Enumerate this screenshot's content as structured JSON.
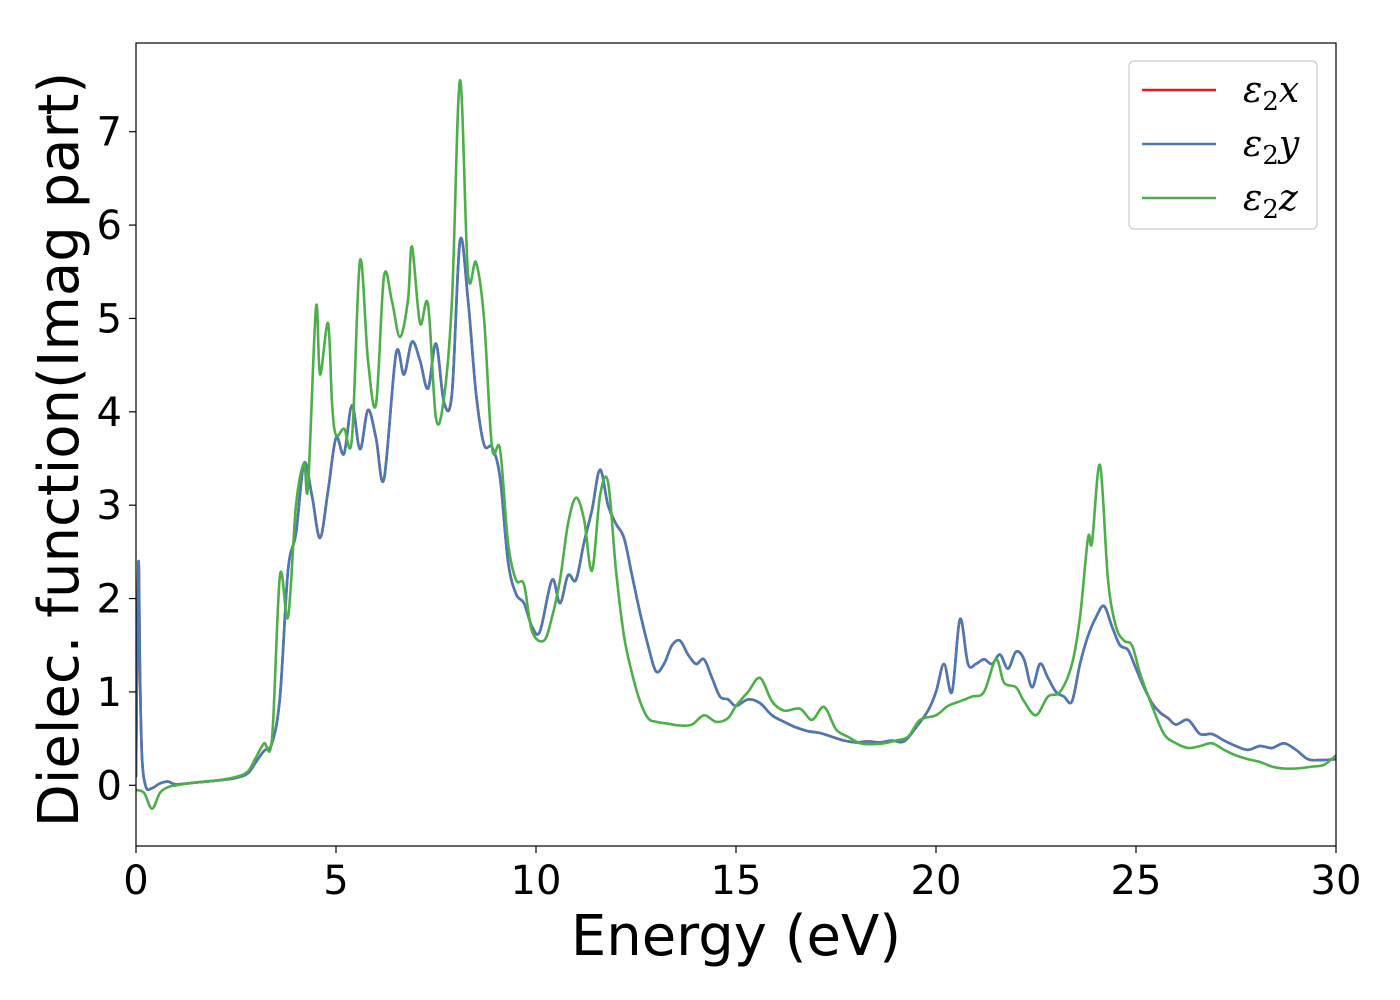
{
  "chart_data": {
    "type": "line",
    "title": "",
    "xlabel": "Energy (eV)",
    "ylabel": "Dielec. function(Imag part)",
    "xlim": [
      0,
      30
    ],
    "ylim": [
      -0.65,
      7.95
    ],
    "xticks": [
      0,
      5,
      10,
      15,
      20,
      25,
      30
    ],
    "yticks": [
      0,
      1,
      2,
      3,
      4,
      5,
      6,
      7
    ],
    "grid": false,
    "legend_position": "top-right",
    "series": [
      {
        "name": "ε2x",
        "legend": {
          "base": "ε",
          "sub": "2",
          "axis": "x"
        },
        "color": "#e41a1c",
        "x": [
          0.0,
          0.06,
          0.1,
          0.15,
          0.25,
          0.4,
          0.6,
          0.8,
          1.0,
          1.5,
          2.0,
          2.5,
          2.8,
          3.0,
          3.2,
          3.4,
          3.6,
          3.8,
          4.0,
          4.2,
          4.4,
          4.6,
          4.8,
          5.0,
          5.2,
          5.4,
          5.6,
          5.8,
          6.0,
          6.2,
          6.5,
          6.7,
          6.9,
          7.1,
          7.3,
          7.5,
          7.7,
          7.9,
          8.1,
          8.3,
          8.5,
          8.7,
          8.9,
          9.1,
          9.3,
          9.5,
          9.7,
          9.9,
          10.1,
          10.4,
          10.6,
          10.8,
          11.0,
          11.2,
          11.4,
          11.6,
          11.8,
          12.0,
          12.2,
          12.4,
          12.6,
          12.8,
          13.0,
          13.2,
          13.4,
          13.6,
          13.8,
          14.0,
          14.2,
          14.4,
          14.6,
          14.8,
          15.0,
          15.3,
          15.6,
          15.9,
          16.2,
          16.5,
          16.8,
          17.1,
          17.4,
          17.7,
          18.0,
          18.3,
          18.6,
          18.9,
          19.2,
          19.5,
          19.8,
          20.0,
          20.2,
          20.4,
          20.6,
          20.8,
          21.0,
          21.2,
          21.4,
          21.6,
          21.8,
          22.0,
          22.2,
          22.4,
          22.6,
          22.8,
          23.0,
          23.2,
          23.4,
          23.6,
          23.8,
          24.0,
          24.2,
          24.4,
          24.6,
          24.8,
          25.0,
          25.2,
          25.4,
          25.6,
          25.8,
          26.0,
          26.3,
          26.6,
          26.9,
          27.2,
          27.5,
          27.8,
          28.1,
          28.4,
          28.7,
          29.0,
          29.3,
          29.6,
          30.0
        ],
        "y": [
          0.1,
          2.38,
          1.2,
          0.3,
          -0.02,
          -0.03,
          0.02,
          0.04,
          0.01,
          0.03,
          0.05,
          0.08,
          0.13,
          0.25,
          0.37,
          0.45,
          0.95,
          2.3,
          2.7,
          3.45,
          3.1,
          2.65,
          3.15,
          3.72,
          3.55,
          4.07,
          3.6,
          4.02,
          3.72,
          3.28,
          4.62,
          4.4,
          4.75,
          4.55,
          4.25,
          4.73,
          4.1,
          4.2,
          5.83,
          5.2,
          4.2,
          3.65,
          3.62,
          3.3,
          2.4,
          2.05,
          1.95,
          1.7,
          1.65,
          2.2,
          1.95,
          2.25,
          2.2,
          2.6,
          2.95,
          3.38,
          3.0,
          2.8,
          2.65,
          2.25,
          1.85,
          1.5,
          1.22,
          1.3,
          1.5,
          1.55,
          1.4,
          1.3,
          1.35,
          1.15,
          0.95,
          0.92,
          0.85,
          0.92,
          0.88,
          0.75,
          0.68,
          0.62,
          0.58,
          0.56,
          0.52,
          0.48,
          0.46,
          0.47,
          0.46,
          0.48,
          0.47,
          0.62,
          0.8,
          1.0,
          1.3,
          1.0,
          1.78,
          1.3,
          1.3,
          1.35,
          1.3,
          1.4,
          1.25,
          1.43,
          1.35,
          1.05,
          1.3,
          1.15,
          1.0,
          0.95,
          0.9,
          1.3,
          1.6,
          1.8,
          1.92,
          1.7,
          1.5,
          1.45,
          1.25,
          1.05,
          0.88,
          0.78,
          0.72,
          0.65,
          0.7,
          0.55,
          0.55,
          0.48,
          0.42,
          0.38,
          0.42,
          0.4,
          0.45,
          0.38,
          0.28,
          0.27,
          0.28
        ]
      },
      {
        "name": "ε2y",
        "legend": {
          "base": "ε",
          "sub": "2",
          "axis": "y"
        },
        "color": "#4a7ab5",
        "x": [
          0.0,
          0.06,
          0.1,
          0.15,
          0.25,
          0.4,
          0.6,
          0.8,
          1.0,
          1.5,
          2.0,
          2.5,
          2.8,
          3.0,
          3.2,
          3.4,
          3.6,
          3.8,
          4.0,
          4.2,
          4.4,
          4.6,
          4.8,
          5.0,
          5.2,
          5.4,
          5.6,
          5.8,
          6.0,
          6.2,
          6.5,
          6.7,
          6.9,
          7.1,
          7.3,
          7.5,
          7.7,
          7.9,
          8.1,
          8.3,
          8.5,
          8.7,
          8.9,
          9.1,
          9.3,
          9.5,
          9.7,
          9.9,
          10.1,
          10.4,
          10.6,
          10.8,
          11.0,
          11.2,
          11.4,
          11.6,
          11.8,
          12.0,
          12.2,
          12.4,
          12.6,
          12.8,
          13.0,
          13.2,
          13.4,
          13.6,
          13.8,
          14.0,
          14.2,
          14.4,
          14.6,
          14.8,
          15.0,
          15.3,
          15.6,
          15.9,
          16.2,
          16.5,
          16.8,
          17.1,
          17.4,
          17.7,
          18.0,
          18.3,
          18.6,
          18.9,
          19.2,
          19.5,
          19.8,
          20.0,
          20.2,
          20.4,
          20.6,
          20.8,
          21.0,
          21.2,
          21.4,
          21.6,
          21.8,
          22.0,
          22.2,
          22.4,
          22.6,
          22.8,
          23.0,
          23.2,
          23.4,
          23.6,
          23.8,
          24.0,
          24.2,
          24.4,
          24.6,
          24.8,
          25.0,
          25.2,
          25.4,
          25.6,
          25.8,
          26.0,
          26.3,
          26.6,
          26.9,
          27.2,
          27.5,
          27.8,
          28.1,
          28.4,
          28.7,
          29.0,
          29.3,
          29.6,
          30.0
        ],
        "y": [
          0.1,
          2.38,
          1.2,
          0.3,
          -0.02,
          -0.03,
          0.02,
          0.04,
          0.01,
          0.03,
          0.05,
          0.08,
          0.13,
          0.25,
          0.37,
          0.45,
          0.95,
          2.3,
          2.7,
          3.45,
          3.1,
          2.65,
          3.15,
          3.72,
          3.55,
          4.07,
          3.6,
          4.02,
          3.72,
          3.28,
          4.62,
          4.4,
          4.75,
          4.55,
          4.25,
          4.73,
          4.1,
          4.2,
          5.83,
          5.2,
          4.2,
          3.65,
          3.62,
          3.3,
          2.4,
          2.05,
          1.95,
          1.7,
          1.65,
          2.2,
          1.95,
          2.25,
          2.2,
          2.6,
          2.95,
          3.38,
          3.0,
          2.8,
          2.65,
          2.25,
          1.85,
          1.5,
          1.22,
          1.3,
          1.5,
          1.55,
          1.4,
          1.3,
          1.35,
          1.15,
          0.95,
          0.92,
          0.85,
          0.92,
          0.88,
          0.75,
          0.68,
          0.62,
          0.58,
          0.56,
          0.52,
          0.48,
          0.46,
          0.47,
          0.46,
          0.48,
          0.47,
          0.62,
          0.8,
          1.0,
          1.3,
          1.0,
          1.78,
          1.3,
          1.3,
          1.35,
          1.3,
          1.4,
          1.25,
          1.43,
          1.35,
          1.05,
          1.3,
          1.15,
          1.0,
          0.95,
          0.9,
          1.3,
          1.6,
          1.8,
          1.92,
          1.7,
          1.5,
          1.45,
          1.25,
          1.05,
          0.88,
          0.78,
          0.72,
          0.65,
          0.7,
          0.55,
          0.55,
          0.48,
          0.42,
          0.38,
          0.42,
          0.4,
          0.45,
          0.38,
          0.28,
          0.27,
          0.28
        ]
      },
      {
        "name": "ε2z",
        "legend": {
          "base": "ε",
          "sub": "2",
          "axis": "z"
        },
        "color": "#4daf4a",
        "x": [
          0.0,
          0.2,
          0.4,
          0.6,
          0.8,
          1.0,
          1.5,
          2.0,
          2.5,
          2.8,
          3.0,
          3.2,
          3.4,
          3.6,
          3.8,
          4.0,
          4.2,
          4.3,
          4.5,
          4.6,
          4.8,
          4.9,
          5.0,
          5.2,
          5.4,
          5.6,
          5.8,
          6.0,
          6.2,
          6.4,
          6.6,
          6.8,
          6.9,
          7.1,
          7.3,
          7.5,
          7.7,
          7.9,
          8.1,
          8.3,
          8.5,
          8.7,
          8.9,
          9.1,
          9.3,
          9.5,
          9.7,
          9.9,
          10.2,
          10.4,
          10.6,
          10.8,
          11.0,
          11.2,
          11.4,
          11.6,
          11.8,
          12.0,
          12.2,
          12.4,
          12.6,
          12.8,
          13.0,
          13.3,
          13.6,
          13.9,
          14.2,
          14.5,
          14.8,
          15.0,
          15.3,
          15.6,
          15.9,
          16.2,
          16.6,
          16.9,
          17.2,
          17.5,
          17.8,
          18.1,
          18.4,
          18.7,
          19.0,
          19.3,
          19.6,
          20.0,
          20.3,
          20.6,
          20.9,
          21.2,
          21.5,
          21.7,
          22.0,
          22.2,
          22.5,
          22.8,
          23.1,
          23.4,
          23.6,
          23.8,
          23.9,
          24.1,
          24.3,
          24.5,
          24.7,
          24.9,
          25.1,
          25.4,
          25.7,
          26.0,
          26.3,
          26.6,
          26.9,
          27.2,
          27.5,
          27.8,
          28.1,
          28.4,
          28.7,
          29.0,
          29.4,
          29.7,
          30.0
        ],
        "y": [
          -0.05,
          -0.08,
          -0.25,
          -0.08,
          -0.02,
          0.0,
          0.03,
          0.05,
          0.09,
          0.15,
          0.3,
          0.45,
          0.5,
          2.25,
          1.8,
          3.0,
          3.45,
          3.2,
          5.12,
          4.4,
          4.95,
          4.1,
          3.75,
          3.82,
          3.72,
          5.62,
          4.55,
          4.08,
          5.45,
          5.18,
          4.8,
          5.2,
          5.77,
          4.95,
          5.15,
          3.93,
          4.15,
          5.2,
          7.55,
          5.48,
          5.6,
          5.0,
          3.62,
          3.6,
          2.6,
          2.2,
          2.15,
          1.65,
          1.55,
          1.8,
          2.2,
          2.8,
          3.08,
          2.85,
          2.3,
          3.1,
          3.25,
          2.3,
          1.6,
          1.2,
          0.9,
          0.72,
          0.68,
          0.66,
          0.64,
          0.65,
          0.75,
          0.68,
          0.72,
          0.85,
          1.0,
          1.15,
          0.9,
          0.8,
          0.82,
          0.7,
          0.84,
          0.6,
          0.52,
          0.45,
          0.44,
          0.45,
          0.48,
          0.52,
          0.7,
          0.75,
          0.85,
          0.9,
          0.95,
          1.0,
          1.35,
          1.1,
          1.05,
          0.9,
          0.75,
          0.95,
          1.0,
          1.3,
          1.8,
          2.65,
          2.6,
          3.43,
          2.2,
          1.7,
          1.55,
          1.5,
          1.2,
          0.85,
          0.55,
          0.45,
          0.4,
          0.42,
          0.45,
          0.38,
          0.32,
          0.28,
          0.25,
          0.2,
          0.18,
          0.18,
          0.2,
          0.22,
          0.32
        ]
      }
    ]
  }
}
